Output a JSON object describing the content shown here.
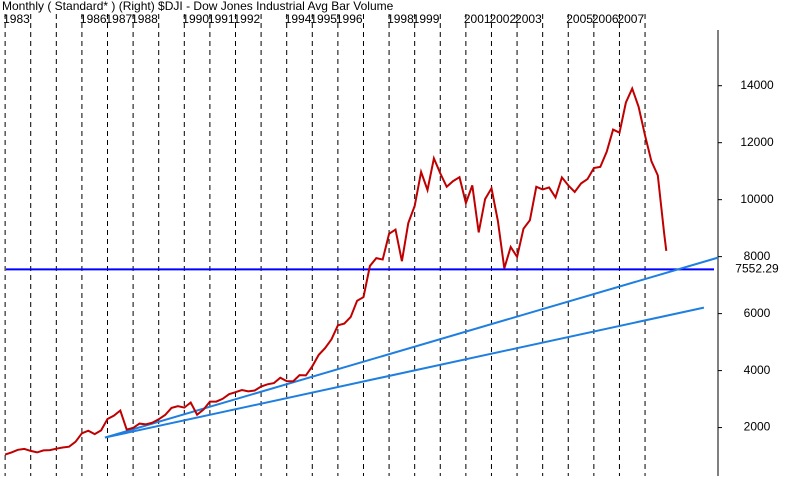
{
  "chart_data": {
    "type": "line",
    "title": "Monthly ( Standard* )  (Right)  $DJI - Dow Jones Industrial Avg  Bar  Volume",
    "x": [
      1983.0,
      1983.25,
      1983.5,
      1983.75,
      1984.0,
      1984.25,
      1984.5,
      1984.75,
      1985.0,
      1985.25,
      1985.5,
      1985.75,
      1986.0,
      1986.25,
      1986.5,
      1986.75,
      1987.0,
      1987.25,
      1987.5,
      1987.75,
      1988.0,
      1988.25,
      1988.5,
      1988.75,
      1989.0,
      1989.25,
      1989.5,
      1989.75,
      1990.0,
      1990.25,
      1990.5,
      1990.75,
      1991.0,
      1991.25,
      1991.5,
      1991.75,
      1992.0,
      1992.25,
      1992.5,
      1992.75,
      1993.0,
      1993.25,
      1993.5,
      1993.75,
      1994.0,
      1994.25,
      1994.5,
      1994.75,
      1995.0,
      1995.25,
      1995.5,
      1995.75,
      1996.0,
      1996.25,
      1996.5,
      1996.75,
      1997.0,
      1997.25,
      1997.5,
      1997.75,
      1998.0,
      1998.25,
      1998.5,
      1998.75,
      1999.0,
      1999.25,
      1999.5,
      1999.75,
      2000.0,
      2000.25,
      2000.5,
      2000.75,
      2001.0,
      2001.25,
      2001.5,
      2001.75,
      2002.0,
      2002.25,
      2002.5,
      2002.75,
      2003.0,
      2003.25,
      2003.5,
      2003.75,
      2004.0,
      2004.25,
      2004.5,
      2004.75,
      2005.0,
      2005.25,
      2005.5,
      2005.75,
      2006.0,
      2006.25,
      2006.5,
      2006.75,
      2007.0,
      2007.25,
      2007.5,
      2007.75,
      2008.0,
      2008.25,
      2008.5,
      2008.75,
      2008.83
    ],
    "values": [
      1050,
      1130,
      1220,
      1250,
      1180,
      1130,
      1200,
      1210,
      1260,
      1300,
      1330,
      1500,
      1800,
      1890,
      1770,
      1900,
      2300,
      2420,
      2600,
      1930,
      1990,
      2140,
      2110,
      2170,
      2290,
      2440,
      2690,
      2750,
      2700,
      2880,
      2450,
      2630,
      2910,
      2910,
      3010,
      3170,
      3240,
      3320,
      3270,
      3300,
      3440,
      3520,
      3560,
      3750,
      3630,
      3620,
      3840,
      3830,
      4150,
      4550,
      4790,
      5100,
      5590,
      5650,
      5880,
      6450,
      6580,
      7670,
      7950,
      7900,
      8800,
      8950,
      7840,
      9180,
      9780,
      10970,
      10340,
      11450,
      10920,
      10450,
      10650,
      10790,
      9880,
      10500,
      8850,
      10020,
      10400,
      9250,
      7590,
      8340,
      7990,
      8980,
      9280,
      10450,
      10360,
      10430,
      10080,
      10780,
      10500,
      10270,
      10570,
      10720,
      11110,
      11150,
      11680,
      12460,
      12350,
      13410,
      13900,
      13260,
      12260,
      11350,
      10850,
      8800,
      8200
    ],
    "color": "#c00000",
    "xlim": [
      1982.8,
      2010.85
    ],
    "xticks": [
      1983,
      {
        "value": 1984,
        "label": null
      },
      {
        "value": 1985,
        "label": null
      },
      1986,
      1987,
      1988,
      {
        "value": 1989,
        "label": null
      },
      1990,
      1991,
      1992,
      {
        "value": 1993,
        "label": null
      },
      1994,
      1995,
      1996,
      {
        "value": 1997,
        "label": null
      },
      1998,
      1999,
      {
        "value": 2000,
        "label": null
      },
      2001,
      2002,
      2003,
      {
        "value": 2004,
        "label": null
      },
      2005,
      2006,
      2007,
      {
        "value": 2008,
        "label": null
      }
    ],
    "ylim": [
      300,
      15850
    ],
    "yticks": [
      2000,
      4000,
      6000,
      8000,
      10000,
      12000,
      14000
    ],
    "hline": 7552.29,
    "hline_color": "#0000ff",
    "trendlines": [
      {
        "x": [
          1986.9,
          2010.85
        ],
        "y": [
          1650,
          7965
        ]
      },
      {
        "x": [
          1986.9,
          2010.3
        ],
        "y": [
          1650,
          6210
        ]
      }
    ],
    "trend_color": "#1e7fe0"
  }
}
